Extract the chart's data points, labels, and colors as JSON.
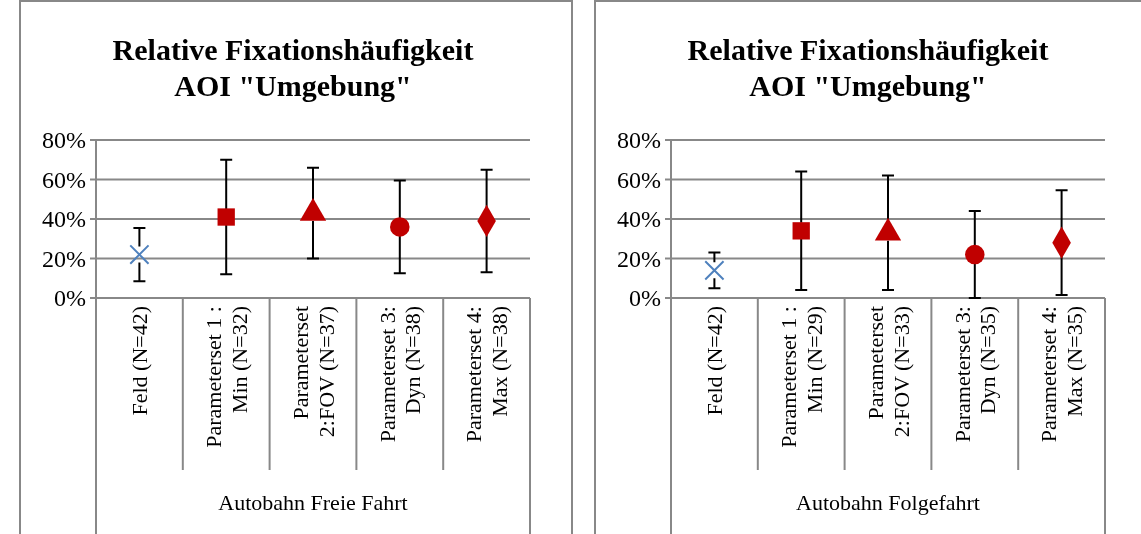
{
  "chart_data": [
    {
      "type": "scatter",
      "title": "Relative Fixationshäufigkeit AOI \"Umgebung\"",
      "xlabel": "Autobahn Freie Fahrt",
      "categories": [
        "Feld (N=42)",
        "Parameterset 1 : Min (N=32)",
        "Parameterset 2:FOV (N=37)",
        "Parameterset 3: Dyn (N=38)",
        "Parameterset 4: Max (N=38)"
      ],
      "ylim": [
        0,
        80
      ],
      "yticks": [
        {
          "value": 0,
          "label": "0%"
        },
        {
          "value": 20,
          "label": "20%"
        },
        {
          "value": 40,
          "label": "40%"
        },
        {
          "value": 60,
          "label": "60%"
        },
        {
          "value": 80,
          "label": "80%"
        }
      ],
      "grid": "y",
      "series": [
        {
          "color": "#4f81bd",
          "marker": "cross",
          "values": [
            22,
            null,
            null,
            null,
            null
          ],
          "errors": [
            13.5,
            null,
            null,
            null,
            null
          ]
        },
        {
          "color": "#c00000",
          "marker": "square",
          "values": [
            null,
            41,
            null,
            null,
            null
          ],
          "errors": [
            null,
            29,
            null,
            null,
            null
          ]
        },
        {
          "color": "#c00000",
          "marker": "triangle",
          "values": [
            null,
            null,
            43,
            null,
            null
          ],
          "errors": [
            null,
            null,
            23,
            null,
            null
          ]
        },
        {
          "color": "#c00000",
          "marker": "circle",
          "values": [
            null,
            null,
            null,
            36,
            null
          ],
          "errors": [
            null,
            null,
            null,
            23.5,
            null
          ]
        },
        {
          "color": "#c00000",
          "marker": "diamond",
          "values": [
            null,
            null,
            null,
            null,
            39
          ],
          "errors": [
            null,
            null,
            null,
            null,
            26
          ]
        }
      ]
    },
    {
      "type": "scatter",
      "title": "Relative Fixationshäufigkeit AOI \"Umgebung\"",
      "xlabel": "Autobahn Folgefahrt",
      "categories": [
        "Feld (N=42)",
        "Parameterset 1 : Min (N=29)",
        "Parameterset 2:FOV (N=33)",
        "Parameterset 3: Dyn (N=35)",
        "Parameterset 4: Max (N=35)"
      ],
      "ylim": [
        0,
        80
      ],
      "yticks": [
        {
          "value": 0,
          "label": "0%"
        },
        {
          "value": 20,
          "label": "20%"
        },
        {
          "value": 40,
          "label": "40%"
        },
        {
          "value": 60,
          "label": "60%"
        },
        {
          "value": 80,
          "label": "80%"
        }
      ],
      "grid": "y",
      "series": [
        {
          "color": "#4f81bd",
          "marker": "cross",
          "values": [
            14,
            null,
            null,
            null,
            null
          ],
          "errors": [
            9,
            null,
            null,
            null,
            null
          ]
        },
        {
          "color": "#c00000",
          "marker": "square",
          "values": [
            null,
            34,
            null,
            null,
            null
          ],
          "errors": [
            null,
            30,
            null,
            null,
            null
          ]
        },
        {
          "color": "#c00000",
          "marker": "triangle",
          "values": [
            null,
            null,
            33,
            null,
            null
          ],
          "errors": [
            null,
            null,
            29,
            null,
            null
          ]
        },
        {
          "color": "#c00000",
          "marker": "circle",
          "values": [
            null,
            null,
            null,
            22,
            null
          ],
          "errors": [
            null,
            null,
            null,
            22,
            null
          ]
        },
        {
          "color": "#c00000",
          "marker": "diamond",
          "values": [
            null,
            null,
            null,
            null,
            28
          ],
          "errors": [
            null,
            null,
            null,
            null,
            26.5
          ]
        }
      ]
    }
  ]
}
